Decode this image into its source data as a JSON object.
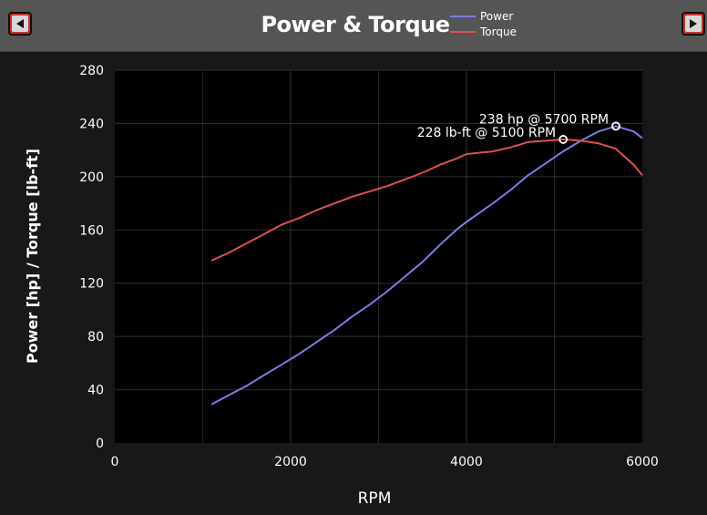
{
  "header": {
    "title": "Power & Torque",
    "prev_icon": "triangle-left-icon",
    "next_icon": "triangle-right-icon"
  },
  "legend": [
    {
      "label": "Power",
      "color": "#7b7be8"
    },
    {
      "label": "Torque",
      "color": "#e05050"
    }
  ],
  "chart_data": {
    "type": "line",
    "xlabel": "RPM",
    "ylabel": "Power [hp] / Torque [lb-ft]",
    "xlim": [
      0,
      6000
    ],
    "ylim": [
      0,
      280
    ],
    "xticks": [
      0,
      2000,
      4000,
      6000
    ],
    "yticks": [
      0,
      40,
      80,
      120,
      160,
      200,
      240,
      280
    ],
    "grid": true,
    "legend_position": "top",
    "series": [
      {
        "name": "Power",
        "color": "#7b7be8",
        "x": [
          1100,
          1300,
          1500,
          1700,
          1900,
          2100,
          2300,
          2500,
          2700,
          2900,
          3100,
          3300,
          3500,
          3700,
          3900,
          4000,
          4300,
          4500,
          4700,
          4900,
          5100,
          5300,
          5500,
          5700,
          5900,
          6000
        ],
        "y": [
          29,
          36,
          43,
          51,
          59,
          67,
          76,
          85,
          95,
          104,
          114,
          125,
          136,
          149,
          161,
          166,
          180,
          190,
          201,
          210,
          219,
          227,
          234,
          238,
          234,
          229
        ]
      },
      {
        "name": "Torque",
        "color": "#e05050",
        "x": [
          1100,
          1300,
          1500,
          1700,
          1900,
          2100,
          2300,
          2500,
          2700,
          2900,
          3100,
          3300,
          3500,
          3700,
          3900,
          4000,
          4300,
          4500,
          4700,
          4900,
          5100,
          5300,
          5500,
          5700,
          5900,
          6000
        ],
        "y": [
          137,
          143,
          150,
          157,
          164,
          169,
          175,
          180,
          185,
          189,
          193,
          198,
          203,
          209,
          214,
          217,
          219,
          222,
          226,
          227,
          228,
          227,
          225,
          221,
          209,
          201
        ]
      }
    ],
    "annotations": [
      {
        "text": "228 lb-ft @ 5100 RPM",
        "x": 5100,
        "y": 228
      },
      {
        "text": "238 hp @ 5700 RPM",
        "x": 5700,
        "y": 238
      }
    ]
  }
}
